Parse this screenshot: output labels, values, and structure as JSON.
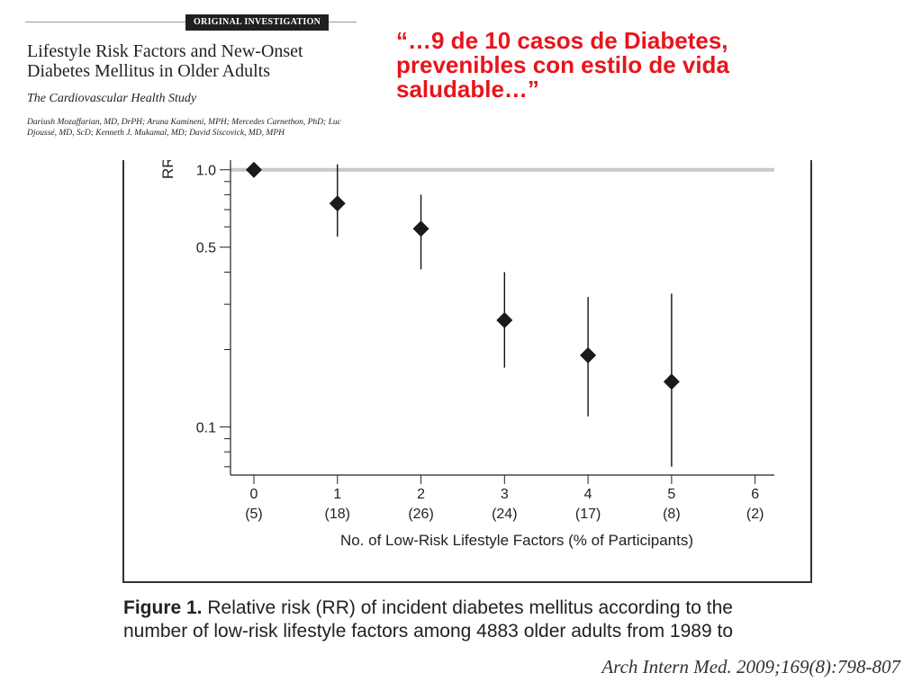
{
  "article": {
    "section_tag": "ORIGINAL INVESTIGATION",
    "title": "Lifestyle Risk Factors and New-Onset\nDiabetes Mellitus in Older Adults",
    "subtitle": "The Cardiovascular Health Study",
    "authors": "Dariush Mozaffarian, MD, DrPH; Aruna Kamineni, MPH; Mercedes Carnethon, PhD; Luc Djoussé, MD, ScD; Kenneth J. Mukamal, MD; David Siscovick, MD, MPH"
  },
  "quote": "“…9 de 10 casos de Diabetes,\nprevenibles con estilo de vida\nsaludable…”",
  "caption": {
    "label": "Figure 1.",
    "text": " Relative risk (RR) of incident diabetes mellitus according to the\nnumber of low-risk lifestyle factors among 4883 older adults from 1989 to"
  },
  "citation": "Arch Intern Med. 2009;169(8):798-807",
  "colors": {
    "quote": "#e8141c",
    "reference_line": "#c8c8c8",
    "marker": "#1a1a1a"
  },
  "chart_data": {
    "type": "scatter",
    "title": "",
    "xlabel": "No. of Low-Risk Lifestyle Factors (% of Participants)",
    "ylabel": "RR",
    "y_scale": "log",
    "ylim": [
      0.065,
      1.09
    ],
    "xlim": [
      -0.28,
      6.23
    ],
    "x_ticks": [
      "0",
      "1",
      "2",
      "3",
      "4",
      "5",
      "6"
    ],
    "x_tick_sublabels": [
      "(5)",
      "(18)",
      "(26)",
      "(24)",
      "(17)",
      "(8)",
      "(2)"
    ],
    "y_tick_labels": [
      {
        "value": 1.0,
        "label": "1.0"
      },
      {
        "value": 0.5,
        "label": "0.5"
      },
      {
        "value": 0.1,
        "label": "0.1"
      }
    ],
    "y_minor_ticks": [
      0.9,
      0.8,
      0.7,
      0.6,
      0.4,
      0.3,
      0.2,
      0.09,
      0.08,
      0.07
    ],
    "reference_line": 1.0,
    "points": [
      {
        "x": 0,
        "rr": 1.0,
        "ci_low": null,
        "ci_high": null
      },
      {
        "x": 1,
        "rr": 0.74,
        "ci_low": 0.55,
        "ci_high": 1.05
      },
      {
        "x": 2,
        "rr": 0.59,
        "ci_low": 0.41,
        "ci_high": 0.8
      },
      {
        "x": 3,
        "rr": 0.26,
        "ci_low": 0.17,
        "ci_high": 0.4
      },
      {
        "x": 4,
        "rr": 0.19,
        "ci_low": 0.11,
        "ci_high": 0.32
      },
      {
        "x": 5,
        "rr": 0.15,
        "ci_low": 0.07,
        "ci_high": 0.33
      }
    ]
  }
}
